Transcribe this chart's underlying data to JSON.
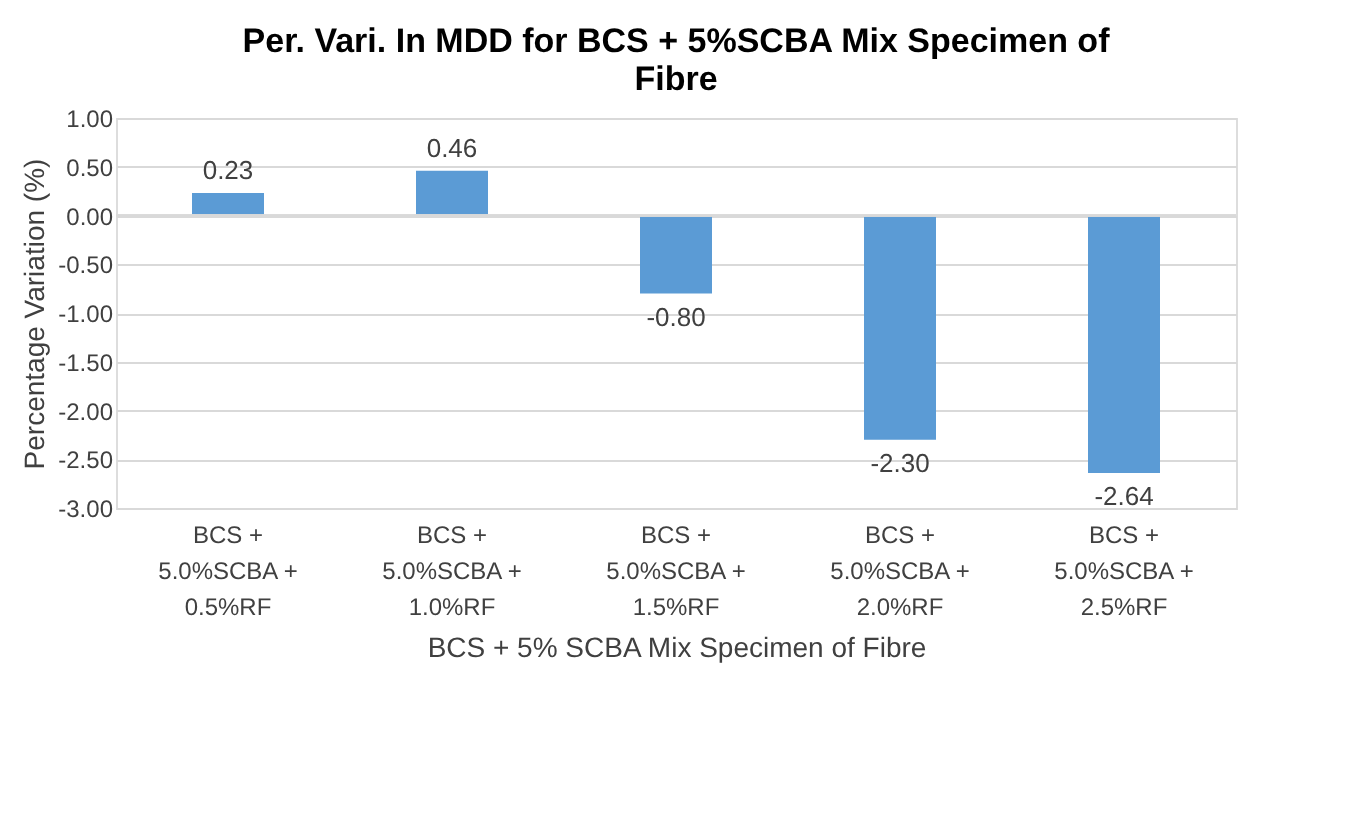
{
  "chart_data": {
    "type": "bar",
    "title": "Per. Vari. In MDD for BCS + 5%SCBA Mix Specimen of\nFibre",
    "xlabel": "BCS + 5% SCBA Mix Specimen of Fibre",
    "ylabel": "Percentage Variation (%)",
    "categories": [
      "BCS +\n5.0%SCBA +\n0.5%RF",
      "BCS +\n5.0%SCBA +\n1.0%RF",
      "BCS +\n5.0%SCBA +\n1.5%RF",
      "BCS +\n5.0%SCBA +\n2.0%RF",
      "BCS +\n5.0%SCBA +\n2.5%RF"
    ],
    "values": [
      0.23,
      0.46,
      -0.8,
      -2.3,
      -2.64
    ],
    "value_labels": [
      "0.23",
      "0.46",
      "-0.80",
      "-2.30",
      "-2.64"
    ],
    "color": "#5b9bd5",
    "ylim": [
      -3.0,
      1.0
    ],
    "yticks": [
      {
        "value": -3.0,
        "label": "-3.00"
      },
      {
        "value": -2.5,
        "label": "-2.50"
      },
      {
        "value": -2.0,
        "label": "-2.00"
      },
      {
        "value": -1.5,
        "label": "-1.50"
      },
      {
        "value": -1.0,
        "label": "-1.00"
      },
      {
        "value": -0.5,
        "label": "-0.50"
      },
      {
        "value": 0.0,
        "label": "0.00"
      },
      {
        "value": 0.5,
        "label": "0.50"
      },
      {
        "value": 1.0,
        "label": "1.00"
      }
    ],
    "grid": "y"
  }
}
